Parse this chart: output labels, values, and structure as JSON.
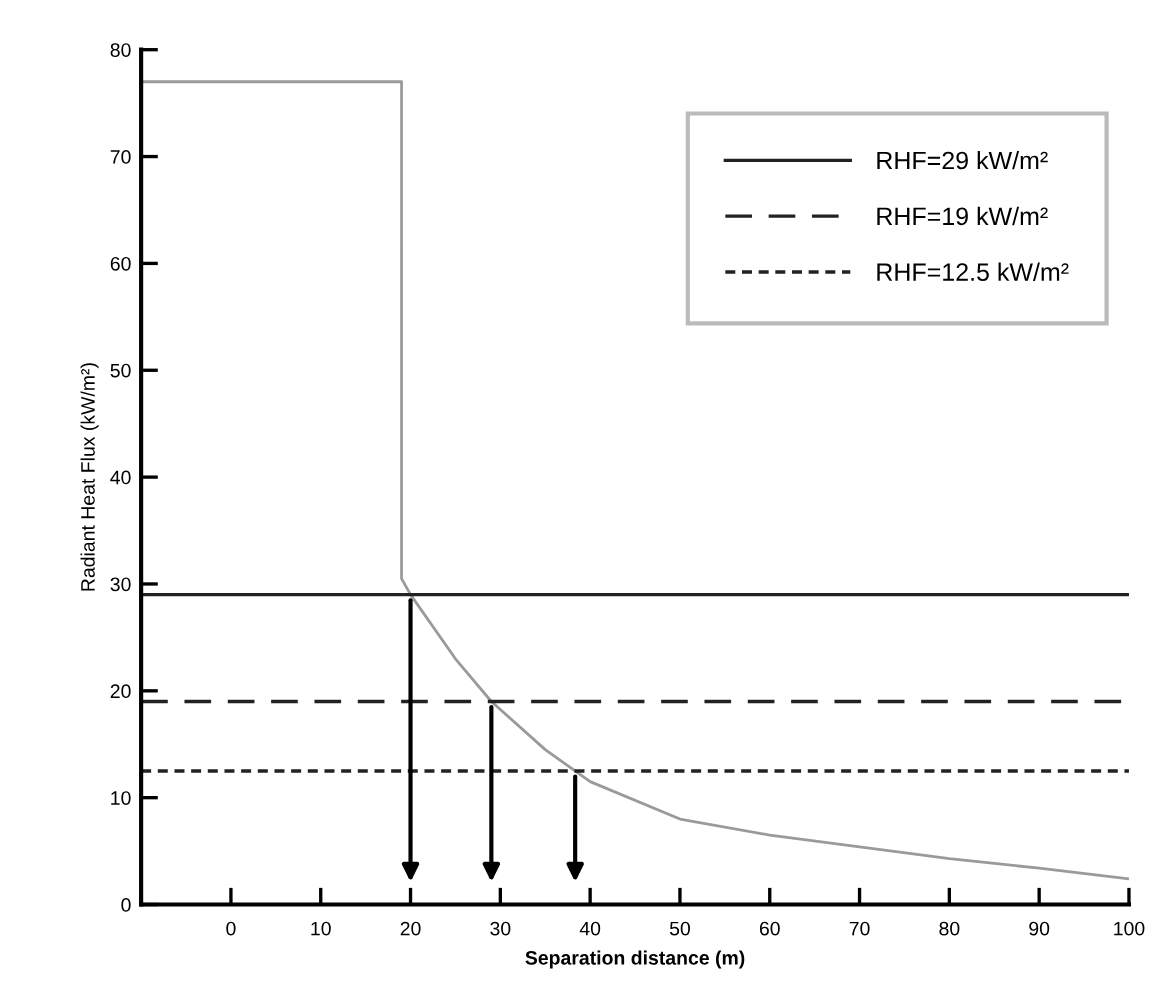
{
  "chart_data": {
    "type": "line",
    "xlabel": "Separation distance (m)",
    "ylabel": "Radiant Heat Flux (kW/m²)",
    "series": [
      {
        "type": "line",
        "color": "#9a9a9a",
        "x": [
          -10,
          19,
          19,
          20,
          25,
          29,
          35,
          40,
          50,
          60,
          70,
          80,
          90,
          100
        ],
        "values": [
          77,
          77,
          30.5,
          29,
          23,
          19,
          14.5,
          11.5,
          8,
          6.5,
          5.4,
          4.3,
          3.4,
          2.4
        ]
      },
      {
        "name": "RHF=29 kW/m²",
        "color": "#222222",
        "line_style": "solid",
        "x": [
          -10,
          100
        ],
        "values": [
          29,
          29
        ]
      },
      {
        "name": "RHF=19 kW/m²",
        "color": "#222222",
        "line_style": "dashed",
        "x": [
          -10,
          100
        ],
        "values": [
          19,
          19
        ]
      },
      {
        "name": "RHF=12.5 kW/m²",
        "color": "#222222",
        "line_style": "dotted",
        "x": [
          -10,
          100
        ],
        "values": [
          12.5,
          12.5
        ]
      }
    ],
    "xlim": [
      -10,
      100
    ],
    "xticks": [
      0,
      10,
      20,
      30,
      40,
      50,
      60,
      70,
      80,
      90,
      100
    ],
    "ylim": [
      0,
      80
    ],
    "yticks": [
      0,
      10,
      20,
      30,
      40,
      50,
      60,
      70,
      80
    ],
    "legend": "top right",
    "marker": "none"
  }
}
